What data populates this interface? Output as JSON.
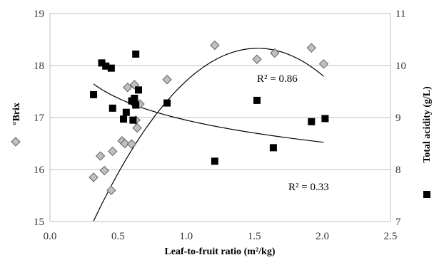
{
  "chart_data": {
    "type": "scatter",
    "title": "",
    "xlabel": "Leaf-to-fruit ratio (m²/kg)",
    "ylabel_left": "°Brix",
    "ylabel_right": "Total acidity (g/L)",
    "xlim": [
      0,
      2.5
    ],
    "ylim_left": [
      15,
      19
    ],
    "ylim_right": [
      7,
      11
    ],
    "x_ticks": [
      "0.0",
      "0.5",
      "1.0",
      "1.5",
      "2.0",
      "2.5"
    ],
    "y_left_ticks": [
      "15",
      "16",
      "17",
      "18",
      "19"
    ],
    "y_right_ticks": [
      "7",
      "8",
      "9",
      "10",
      "11"
    ],
    "grid": "horizontal",
    "series": [
      {
        "name": "°Brix",
        "axis": "left",
        "marker": "diamond",
        "color": "#c0c0c0",
        "points": [
          [
            0.32,
            15.85
          ],
          [
            0.37,
            16.26
          ],
          [
            0.4,
            15.98
          ],
          [
            0.45,
            15.6
          ],
          [
            0.46,
            16.35
          ],
          [
            0.53,
            16.55
          ],
          [
            0.55,
            16.5
          ],
          [
            0.57,
            17.58
          ],
          [
            0.6,
            16.49
          ],
          [
            0.62,
            17.63
          ],
          [
            0.63,
            16.95
          ],
          [
            0.64,
            16.8
          ],
          [
            0.66,
            17.26
          ],
          [
            0.86,
            17.73
          ],
          [
            1.21,
            18.39
          ],
          [
            1.52,
            18.12
          ],
          [
            1.65,
            18.24
          ],
          [
            1.92,
            18.34
          ],
          [
            2.01,
            18.03
          ]
        ],
        "trendline": {
          "kind": "polynomial",
          "coeffs": [
            13.01,
            6.982,
            -2.29
          ],
          "from": 0.32,
          "to": 2.01
        },
        "r2_label": "R² = 0.86"
      },
      {
        "name": "Total acidity (g/L)",
        "axis": "right",
        "marker": "square",
        "color": "#000000",
        "points": [
          [
            0.32,
            9.44
          ],
          [
            0.38,
            10.05
          ],
          [
            0.41,
            9.99
          ],
          [
            0.45,
            9.95
          ],
          [
            0.46,
            9.18
          ],
          [
            0.54,
            8.97
          ],
          [
            0.56,
            9.1
          ],
          [
            0.6,
            9.32
          ],
          [
            0.61,
            8.95
          ],
          [
            0.62,
            9.37
          ],
          [
            0.62,
            9.3
          ],
          [
            0.63,
            9.24
          ],
          [
            0.63,
            10.22
          ],
          [
            0.65,
            9.53
          ],
          [
            0.86,
            9.28
          ],
          [
            1.21,
            8.16
          ],
          [
            1.52,
            9.33
          ],
          [
            1.64,
            8.42
          ],
          [
            1.92,
            8.92
          ],
          [
            2.02,
            8.98
          ]
        ],
        "trendline": {
          "kind": "logarithmic",
          "a": 8.95,
          "b": -0.61,
          "from": 0.32,
          "to": 2.01
        },
        "r2_label": "R² = 0.33"
      }
    ]
  }
}
